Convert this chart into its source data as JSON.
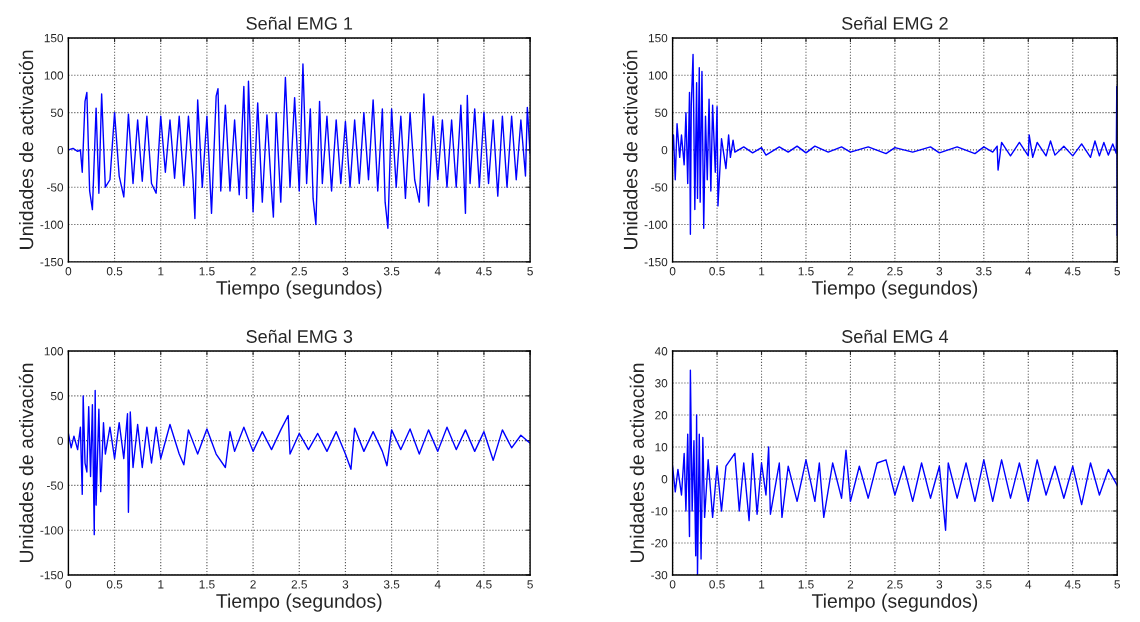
{
  "chart_data": [
    {
      "type": "line",
      "title": "Señal EMG 1",
      "xlabel": "Tiempo (segundos)",
      "ylabel": "Unidades de activación",
      "xlim": [
        0,
        5
      ],
      "ylim": [
        -150,
        150
      ],
      "xticks": [
        0,
        0.5,
        1,
        1.5,
        2,
        2.5,
        3,
        3.5,
        4,
        4.5,
        5
      ],
      "yticks": [
        -150,
        -100,
        -50,
        0,
        50,
        100,
        150
      ],
      "grid": true,
      "series": [
        {
          "color": "#0000ff",
          "x": [
            0,
            0.05,
            0.1,
            0.13,
            0.15,
            0.18,
            0.2,
            0.23,
            0.26,
            0.3,
            0.33,
            0.36,
            0.4,
            0.45,
            0.5,
            0.55,
            0.6,
            0.65,
            0.7,
            0.75,
            0.8,
            0.85,
            0.9,
            0.95,
            1.0,
            1.05,
            1.1,
            1.15,
            1.2,
            1.25,
            1.3,
            1.35,
            1.37,
            1.4,
            1.45,
            1.5,
            1.55,
            1.6,
            1.62,
            1.65,
            1.7,
            1.75,
            1.8,
            1.85,
            1.9,
            1.93,
            1.95,
            2.0,
            2.05,
            2.1,
            2.15,
            2.2,
            2.22,
            2.25,
            2.3,
            2.35,
            2.4,
            2.45,
            2.5,
            2.54,
            2.58,
            2.62,
            2.65,
            2.68,
            2.72,
            2.75,
            2.8,
            2.85,
            2.9,
            2.95,
            3.0,
            3.05,
            3.1,
            3.15,
            3.2,
            3.25,
            3.3,
            3.35,
            3.4,
            3.43,
            3.46,
            3.5,
            3.55,
            3.6,
            3.65,
            3.7,
            3.75,
            3.8,
            3.85,
            3.9,
            3.95,
            4.0,
            4.05,
            4.1,
            4.15,
            4.2,
            4.25,
            4.3,
            4.32,
            4.35,
            4.4,
            4.45,
            4.5,
            4.55,
            4.6,
            4.65,
            4.7,
            4.75,
            4.8,
            4.85,
            4.9,
            4.95,
            4.97,
            5.0
          ],
          "values": [
            0,
            2,
            -2,
            0,
            -30,
            65,
            77,
            -55,
            -80,
            56,
            -58,
            75,
            -50,
            -40,
            50,
            -35,
            -63,
            48,
            -45,
            40,
            -42,
            45,
            -45,
            -58,
            45,
            -30,
            40,
            -38,
            45,
            -48,
            45,
            -40,
            -92,
            67,
            -50,
            45,
            -85,
            72,
            82,
            -55,
            60,
            -55,
            40,
            -60,
            85,
            -65,
            92,
            -83,
            63,
            -70,
            47,
            -55,
            -90,
            50,
            -70,
            97,
            -50,
            70,
            -55,
            115,
            -45,
            55,
            -65,
            -100,
            65,
            -45,
            45,
            -55,
            40,
            -45,
            38,
            -50,
            40,
            -45,
            50,
            -40,
            67,
            -55,
            55,
            -70,
            -105,
            55,
            -50,
            45,
            -65,
            50,
            -40,
            -70,
            75,
            -75,
            45,
            -40,
            40,
            -50,
            40,
            -50,
            60,
            -85,
            73,
            -45,
            55,
            -50,
            50,
            -45,
            40,
            -62,
            45,
            -50,
            45,
            -40,
            40,
            -35,
            57,
            -5
          ]
        }
      ]
    },
    {
      "type": "line",
      "title": "Señal EMG 2",
      "xlabel": "Tiempo (segundos)",
      "ylabel": "Unidades de activación",
      "xlim": [
        0,
        5
      ],
      "ylim": [
        -150,
        150
      ],
      "xticks": [
        0,
        0.5,
        1,
        1.5,
        2,
        2.5,
        3,
        3.5,
        4,
        4.5,
        5
      ],
      "yticks": [
        -150,
        -100,
        -50,
        0,
        50,
        100,
        150
      ],
      "grid": true,
      "series": [
        {
          "color": "#0000ff",
          "x": [
            0,
            0.01,
            0.03,
            0.05,
            0.08,
            0.1,
            0.13,
            0.15,
            0.17,
            0.19,
            0.2,
            0.21,
            0.23,
            0.25,
            0.27,
            0.28,
            0.3,
            0.31,
            0.33,
            0.35,
            0.37,
            0.39,
            0.41,
            0.43,
            0.45,
            0.48,
            0.5,
            0.51,
            0.55,
            0.6,
            0.63,
            0.65,
            0.68,
            0.7,
            0.8,
            0.9,
            1.0,
            1.05,
            1.2,
            1.3,
            1.4,
            1.5,
            1.6,
            1.75,
            1.9,
            2.0,
            2.2,
            2.4,
            2.5,
            2.7,
            2.9,
            3.0,
            3.2,
            3.4,
            3.5,
            3.6,
            3.65,
            3.66,
            3.7,
            3.8,
            3.9,
            4.0,
            4.01,
            4.05,
            4.1,
            4.2,
            4.25,
            4.3,
            4.4,
            4.5,
            4.6,
            4.7,
            4.75,
            4.8,
            4.85,
            4.9,
            4.95,
            4.99,
            4.995,
            5.0
          ],
          "values": [
            0,
            20,
            -40,
            35,
            -10,
            20,
            -20,
            50,
            -45,
            77,
            -113,
            60,
            128,
            -80,
            90,
            -65,
            110,
            -70,
            105,
            -105,
            45,
            -40,
            68,
            -55,
            60,
            -30,
            58,
            -75,
            15,
            -25,
            20,
            -10,
            13,
            -3,
            4,
            -4,
            3,
            -7,
            4,
            -3,
            5,
            -4,
            5,
            -3,
            4,
            -3,
            4,
            -5,
            3,
            -3,
            4,
            -4,
            4,
            -5,
            4,
            -3,
            5,
            -27,
            10,
            -8,
            10,
            -8,
            20,
            -10,
            10,
            -8,
            12,
            -7,
            5,
            -8,
            8,
            -10,
            12,
            -8,
            10,
            -7,
            8,
            -5,
            85,
            -115
          ]
        }
      ]
    },
    {
      "type": "line",
      "title": "Señal EMG 3",
      "xlabel": "Tiempo (segundos)",
      "ylabel": "Unidades de activación",
      "xlim": [
        0,
        5
      ],
      "ylim": [
        -150,
        100
      ],
      "xticks": [
        0,
        0.5,
        1,
        1.5,
        2,
        2.5,
        3,
        3.5,
        4,
        4.5,
        5
      ],
      "yticks": [
        -150,
        -100,
        -50,
        0,
        50,
        100
      ],
      "grid": true,
      "series": [
        {
          "color": "#0000ff",
          "x": [
            0,
            0.03,
            0.06,
            0.1,
            0.13,
            0.15,
            0.16,
            0.18,
            0.2,
            0.22,
            0.24,
            0.26,
            0.28,
            0.29,
            0.3,
            0.33,
            0.35,
            0.38,
            0.4,
            0.45,
            0.5,
            0.55,
            0.6,
            0.64,
            0.65,
            0.67,
            0.7,
            0.75,
            0.8,
            0.85,
            0.9,
            0.95,
            1.0,
            1.1,
            1.2,
            1.25,
            1.3,
            1.4,
            1.5,
            1.6,
            1.7,
            1.75,
            1.8,
            1.9,
            2.0,
            2.1,
            2.2,
            2.3,
            2.38,
            2.4,
            2.5,
            2.6,
            2.7,
            2.8,
            2.9,
            3.0,
            3.06,
            3.1,
            3.2,
            3.3,
            3.4,
            3.45,
            3.5,
            3.6,
            3.7,
            3.8,
            3.9,
            4.0,
            4.1,
            4.2,
            4.3,
            4.4,
            4.5,
            4.6,
            4.7,
            4.8,
            4.9,
            5.0
          ],
          "values": [
            8,
            -8,
            5,
            -10,
            15,
            -60,
            50,
            -25,
            -35,
            38,
            -40,
            40,
            -105,
            56,
            -72,
            35,
            -57,
            20,
            -15,
            15,
            -20,
            20,
            -20,
            30,
            -80,
            32,
            -30,
            18,
            -30,
            15,
            -25,
            15,
            -20,
            18,
            -15,
            -27,
            12,
            -15,
            13,
            -15,
            -30,
            10,
            -12,
            15,
            -12,
            10,
            -10,
            12,
            28,
            -15,
            8,
            -10,
            8,
            -12,
            10,
            -15,
            -32,
            14,
            -12,
            10,
            -12,
            -28,
            12,
            -10,
            13,
            -15,
            12,
            -12,
            15,
            -10,
            12,
            -12,
            10,
            -22,
            12,
            -8,
            6,
            -3
          ]
        }
      ]
    },
    {
      "type": "line",
      "title": "Señal EMG 4",
      "xlabel": "Tiempo (segundos)",
      "ylabel": "Unidades de activación",
      "xlim": [
        0,
        5
      ],
      "ylim": [
        -30,
        40
      ],
      "xticks": [
        0,
        0.5,
        1,
        1.5,
        2,
        2.5,
        3,
        3.5,
        4,
        4.5,
        5
      ],
      "yticks": [
        -30,
        -20,
        -10,
        0,
        10,
        20,
        30,
        40
      ],
      "grid": true,
      "series": [
        {
          "color": "#0000ff",
          "x": [
            0,
            0.03,
            0.06,
            0.1,
            0.13,
            0.15,
            0.17,
            0.19,
            0.2,
            0.22,
            0.24,
            0.26,
            0.27,
            0.28,
            0.3,
            0.32,
            0.34,
            0.36,
            0.4,
            0.45,
            0.5,
            0.55,
            0.6,
            0.7,
            0.75,
            0.8,
            0.86,
            0.9,
            0.95,
            1.0,
            1.05,
            1.08,
            1.1,
            1.2,
            1.23,
            1.3,
            1.4,
            1.5,
            1.6,
            1.65,
            1.7,
            1.8,
            1.9,
            1.95,
            2.0,
            2.1,
            2.2,
            2.3,
            2.4,
            2.5,
            2.6,
            2.7,
            2.8,
            2.9,
            3.0,
            3.07,
            3.1,
            3.2,
            3.3,
            3.4,
            3.5,
            3.6,
            3.7,
            3.8,
            3.9,
            4.0,
            4.1,
            4.2,
            4.3,
            4.4,
            4.5,
            4.6,
            4.7,
            4.8,
            4.9,
            5.0
          ],
          "values": [
            4,
            -4,
            3,
            -5,
            8,
            -10,
            14,
            -18,
            34,
            -10,
            12,
            -24,
            20,
            -30,
            14,
            -25,
            13,
            -12,
            6,
            -12,
            4,
            -10,
            4,
            8,
            -10,
            5,
            -13,
            8,
            -11,
            5,
            -5,
            10,
            -11,
            5,
            -12,
            4,
            -7,
            6,
            -7,
            5,
            -12,
            5,
            -6,
            9,
            -7,
            4,
            -6,
            5,
            6,
            -5,
            4,
            -7,
            5,
            -6,
            4,
            -16,
            5,
            -6,
            5,
            -7,
            6,
            -7,
            6,
            -6,
            5,
            -7,
            6,
            -5,
            4,
            -6,
            4,
            -8,
            5,
            -5,
            3,
            -2
          ]
        }
      ]
    }
  ]
}
